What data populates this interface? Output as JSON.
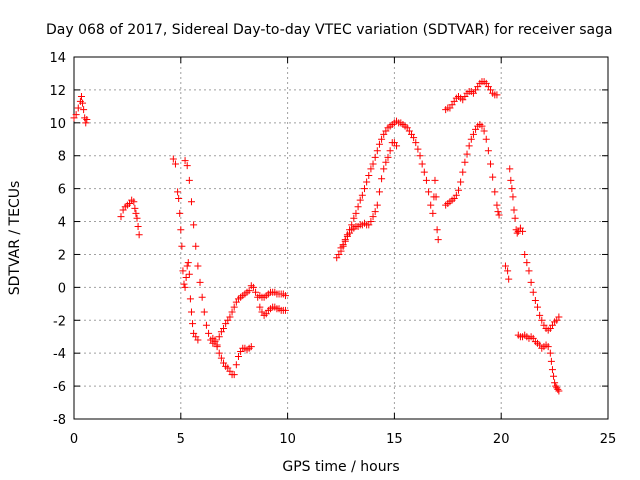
{
  "chart_data": {
    "type": "scatter",
    "title": "Day 068 of 2017, Sidereal Day-to-day VTEC variation (SDTVAR) for receiver saga",
    "xlabel": "GPS time / hours",
    "ylabel": "SDTVAR / TECUs",
    "xlim": [
      0,
      25
    ],
    "ylim": [
      -8,
      14
    ],
    "x_ticks": [
      0,
      5,
      10,
      15,
      20,
      25
    ],
    "y_ticks": [
      -8,
      -6,
      -4,
      -2,
      0,
      2,
      4,
      6,
      8,
      10,
      12,
      14
    ],
    "x_tick_labels": [
      "0",
      "5",
      "10",
      "15",
      "20",
      "25"
    ],
    "y_tick_labels": [
      "-8",
      "-6",
      "-4",
      "-2",
      "0",
      "2",
      "4",
      "6",
      "8",
      "10",
      "12",
      "14"
    ],
    "grid": true,
    "marker": "+",
    "color": "#ff0000",
    "series": [
      {
        "points": [
          [
            0.0,
            10.3
          ],
          [
            0.1,
            10.5
          ],
          [
            0.2,
            10.9
          ],
          [
            0.3,
            11.3
          ],
          [
            0.35,
            11.6
          ],
          [
            0.4,
            11.2
          ],
          [
            0.45,
            10.8
          ],
          [
            0.5,
            10.3
          ],
          [
            0.55,
            10.0
          ],
          [
            0.6,
            10.2
          ]
        ]
      },
      {
        "points": [
          [
            2.2,
            4.3
          ],
          [
            2.3,
            4.7
          ],
          [
            2.4,
            4.9
          ],
          [
            2.5,
            5.0
          ],
          [
            2.6,
            5.1
          ],
          [
            2.7,
            5.3
          ],
          [
            2.8,
            5.2
          ],
          [
            2.85,
            4.8
          ],
          [
            2.9,
            4.5
          ],
          [
            2.95,
            4.2
          ],
          [
            3.0,
            3.7
          ],
          [
            3.05,
            3.2
          ]
        ]
      },
      {
        "points": [
          [
            4.65,
            7.8
          ],
          [
            4.75,
            7.5
          ],
          [
            4.85,
            5.8
          ],
          [
            4.9,
            5.4
          ],
          [
            4.95,
            4.5
          ],
          [
            5.0,
            3.5
          ],
          [
            5.05,
            2.5
          ],
          [
            5.1,
            1.0
          ],
          [
            5.15,
            0.2
          ],
          [
            5.2,
            0.0
          ],
          [
            5.25,
            0.6
          ],
          [
            5.3,
            1.3
          ],
          [
            5.35,
            1.5
          ],
          [
            5.4,
            0.8
          ],
          [
            5.45,
            -0.7
          ],
          [
            5.5,
            -1.5
          ],
          [
            5.55,
            -2.2
          ],
          [
            5.6,
            -2.8
          ],
          [
            5.7,
            -3.0
          ],
          [
            5.8,
            -3.2
          ]
        ]
      },
      {
        "points": [
          [
            5.2,
            7.7
          ],
          [
            5.3,
            7.4
          ],
          [
            5.4,
            6.5
          ],
          [
            5.5,
            5.2
          ],
          [
            5.6,
            3.8
          ],
          [
            5.7,
            2.5
          ],
          [
            5.8,
            1.3
          ],
          [
            5.9,
            0.3
          ],
          [
            6.0,
            -0.6
          ],
          [
            6.1,
            -1.5
          ],
          [
            6.2,
            -2.3
          ],
          [
            6.3,
            -2.8
          ],
          [
            6.4,
            -3.2
          ],
          [
            6.5,
            -3.4
          ],
          [
            6.6,
            -3.3
          ],
          [
            6.7,
            -3.6
          ],
          [
            6.8,
            -4.0
          ],
          [
            6.9,
            -4.3
          ],
          [
            7.0,
            -4.6
          ],
          [
            7.1,
            -4.8
          ],
          [
            7.2,
            -4.9
          ],
          [
            7.3,
            -5.1
          ],
          [
            7.4,
            -5.3
          ],
          [
            7.5,
            -5.3
          ],
          [
            7.6,
            -4.7
          ],
          [
            7.7,
            -4.2
          ],
          [
            7.8,
            -3.9
          ],
          [
            7.9,
            -3.7
          ],
          [
            8.0,
            -3.7
          ],
          [
            8.1,
            -3.8
          ],
          [
            8.2,
            -3.7
          ],
          [
            8.3,
            -3.6
          ]
        ]
      },
      {
        "points": [
          [
            6.5,
            -3.1
          ],
          [
            6.6,
            -3.2
          ],
          [
            6.7,
            -3.5
          ],
          [
            6.8,
            -3.0
          ],
          [
            6.9,
            -2.7
          ],
          [
            7.0,
            -2.5
          ],
          [
            7.1,
            -2.2
          ],
          [
            7.2,
            -2.0
          ],
          [
            7.3,
            -1.8
          ],
          [
            7.4,
            -1.5
          ],
          [
            7.5,
            -1.2
          ],
          [
            7.6,
            -0.9
          ],
          [
            7.7,
            -0.7
          ],
          [
            7.8,
            -0.6
          ],
          [
            7.9,
            -0.5
          ],
          [
            8.0,
            -0.4
          ],
          [
            8.1,
            -0.3
          ],
          [
            8.2,
            -0.2
          ],
          [
            8.3,
            0.1
          ],
          [
            8.4,
            0.0
          ],
          [
            8.5,
            -0.3
          ],
          [
            8.6,
            -0.6
          ],
          [
            8.7,
            -1.2
          ],
          [
            8.8,
            -1.5
          ],
          [
            8.9,
            -1.7
          ],
          [
            9.0,
            -1.6
          ],
          [
            9.1,
            -1.4
          ],
          [
            9.2,
            -1.3
          ],
          [
            9.3,
            -1.2
          ],
          [
            9.4,
            -1.2
          ],
          [
            9.5,
            -1.3
          ],
          [
            9.6,
            -1.3
          ],
          [
            9.7,
            -1.4
          ],
          [
            9.8,
            -1.4
          ],
          [
            9.9,
            -1.4
          ]
        ]
      },
      {
        "points": [
          [
            8.7,
            -0.5
          ],
          [
            8.8,
            -0.6
          ],
          [
            8.9,
            -0.6
          ],
          [
            9.0,
            -0.5
          ],
          [
            9.1,
            -0.4
          ],
          [
            9.2,
            -0.3
          ],
          [
            9.3,
            -0.3
          ],
          [
            9.4,
            -0.3
          ],
          [
            9.5,
            -0.4
          ],
          [
            9.6,
            -0.4
          ],
          [
            9.7,
            -0.4
          ],
          [
            9.8,
            -0.4
          ],
          [
            9.9,
            -0.5
          ]
        ]
      },
      {
        "points": [
          [
            12.3,
            1.8
          ],
          [
            12.4,
            2.0
          ],
          [
            12.5,
            2.2
          ],
          [
            12.6,
            2.5
          ],
          [
            12.7,
            2.8
          ],
          [
            12.8,
            3.2
          ],
          [
            12.9,
            3.5
          ],
          [
            13.0,
            3.8
          ],
          [
            13.1,
            4.2
          ],
          [
            13.2,
            4.5
          ],
          [
            13.3,
            4.9
          ],
          [
            13.4,
            5.3
          ],
          [
            13.5,
            5.6
          ],
          [
            13.6,
            6.0
          ],
          [
            13.7,
            6.4
          ],
          [
            13.8,
            6.8
          ],
          [
            13.9,
            7.2
          ],
          [
            14.0,
            7.5
          ],
          [
            14.1,
            7.9
          ],
          [
            14.2,
            8.3
          ],
          [
            14.3,
            8.7
          ],
          [
            14.4,
            9.0
          ],
          [
            14.5,
            9.3
          ],
          [
            14.6,
            9.5
          ],
          [
            14.7,
            9.7
          ],
          [
            14.8,
            9.8
          ],
          [
            14.9,
            9.9
          ],
          [
            15.0,
            10.0
          ],
          [
            15.1,
            10.1
          ],
          [
            15.2,
            10.0
          ],
          [
            15.3,
            10.0
          ],
          [
            15.4,
            9.9
          ],
          [
            15.5,
            9.8
          ],
          [
            15.6,
            9.7
          ],
          [
            15.7,
            9.5
          ],
          [
            15.8,
            9.3
          ],
          [
            15.9,
            9.1
          ],
          [
            16.0,
            8.8
          ],
          [
            16.1,
            8.4
          ],
          [
            16.2,
            8.0
          ],
          [
            16.3,
            7.5
          ],
          [
            16.4,
            7.0
          ],
          [
            16.5,
            6.5
          ],
          [
            16.6,
            5.8
          ],
          [
            16.7,
            5.0
          ],
          [
            16.8,
            4.5
          ],
          [
            16.85,
            5.5
          ],
          [
            16.9,
            6.5
          ],
          [
            16.95,
            5.5
          ],
          [
            17.0,
            3.5
          ],
          [
            17.05,
            2.9
          ]
        ]
      },
      {
        "points": [
          [
            12.5,
            2.4
          ],
          [
            12.6,
            2.6
          ],
          [
            12.7,
            2.9
          ],
          [
            12.8,
            3.1
          ],
          [
            12.9,
            3.3
          ],
          [
            13.0,
            3.5
          ],
          [
            13.1,
            3.6
          ],
          [
            13.2,
            3.7
          ],
          [
            13.3,
            3.7
          ],
          [
            13.4,
            3.8
          ],
          [
            13.5,
            3.8
          ],
          [
            13.6,
            3.9
          ],
          [
            13.7,
            3.8
          ],
          [
            13.8,
            3.8
          ],
          [
            13.9,
            4.0
          ],
          [
            14.0,
            4.3
          ],
          [
            14.1,
            4.6
          ],
          [
            14.2,
            5.0
          ],
          [
            14.3,
            5.8
          ],
          [
            14.4,
            6.6
          ],
          [
            14.5,
            7.2
          ],
          [
            14.6,
            7.6
          ],
          [
            14.7,
            7.9
          ],
          [
            14.8,
            8.3
          ],
          [
            14.9,
            8.8
          ],
          [
            15.0,
            8.8
          ],
          [
            15.1,
            8.6
          ]
        ]
      },
      {
        "points": [
          [
            17.4,
            10.8
          ],
          [
            17.5,
            10.9
          ],
          [
            17.6,
            10.9
          ],
          [
            17.7,
            11.1
          ],
          [
            17.8,
            11.3
          ],
          [
            17.9,
            11.5
          ],
          [
            18.0,
            11.6
          ],
          [
            18.1,
            11.5
          ],
          [
            18.2,
            11.4
          ],
          [
            18.3,
            11.6
          ],
          [
            18.4,
            11.8
          ],
          [
            18.5,
            11.9
          ],
          [
            18.6,
            11.9
          ],
          [
            18.7,
            11.8
          ],
          [
            18.8,
            12.0
          ],
          [
            18.9,
            12.2
          ],
          [
            19.0,
            12.4
          ],
          [
            19.1,
            12.5
          ],
          [
            19.2,
            12.5
          ],
          [
            19.3,
            12.4
          ],
          [
            19.4,
            12.2
          ],
          [
            19.5,
            12.0
          ],
          [
            19.6,
            11.8
          ],
          [
            19.7,
            11.7
          ],
          [
            19.8,
            11.7
          ]
        ]
      },
      {
        "points": [
          [
            17.4,
            5.0
          ],
          [
            17.5,
            5.1
          ],
          [
            17.6,
            5.2
          ],
          [
            17.7,
            5.3
          ],
          [
            17.8,
            5.4
          ],
          [
            17.9,
            5.6
          ],
          [
            18.0,
            5.9
          ],
          [
            18.1,
            6.4
          ],
          [
            18.2,
            7.0
          ],
          [
            18.3,
            7.6
          ],
          [
            18.4,
            8.1
          ],
          [
            18.5,
            8.6
          ],
          [
            18.6,
            9.0
          ],
          [
            18.7,
            9.3
          ],
          [
            18.8,
            9.6
          ],
          [
            18.9,
            9.8
          ],
          [
            19.0,
            9.9
          ],
          [
            19.1,
            9.8
          ],
          [
            19.2,
            9.5
          ],
          [
            19.3,
            9.0
          ],
          [
            19.4,
            8.3
          ],
          [
            19.5,
            7.5
          ],
          [
            19.6,
            6.7
          ],
          [
            19.7,
            5.8
          ],
          [
            19.8,
            5.0
          ],
          [
            19.85,
            4.6
          ],
          [
            19.9,
            4.4
          ]
        ]
      },
      {
        "points": [
          [
            20.2,
            1.3
          ],
          [
            20.3,
            1.0
          ],
          [
            20.35,
            0.5
          ],
          [
            20.4,
            7.2
          ],
          [
            20.45,
            6.5
          ],
          [
            20.5,
            6.0
          ],
          [
            20.55,
            5.5
          ],
          [
            20.6,
            4.7
          ],
          [
            20.65,
            4.2
          ],
          [
            20.7,
            3.5
          ],
          [
            20.75,
            3.3
          ],
          [
            20.8,
            3.4
          ],
          [
            20.9,
            3.6
          ],
          [
            21.0,
            3.4
          ],
          [
            21.1,
            2.0
          ],
          [
            21.2,
            1.5
          ],
          [
            21.3,
            1.0
          ],
          [
            21.4,
            0.3
          ],
          [
            21.5,
            -0.3
          ],
          [
            21.6,
            -0.8
          ],
          [
            21.7,
            -1.2
          ],
          [
            21.8,
            -1.7
          ],
          [
            21.9,
            -2.0
          ],
          [
            22.0,
            -2.3
          ],
          [
            22.1,
            -2.5
          ],
          [
            22.2,
            -2.6
          ],
          [
            22.3,
            -2.5
          ],
          [
            22.4,
            -2.3
          ],
          [
            22.5,
            -2.1
          ],
          [
            22.6,
            -2.0
          ],
          [
            22.7,
            -1.8
          ]
        ]
      },
      {
        "points": [
          [
            20.8,
            -2.9
          ],
          [
            20.9,
            -3.0
          ],
          [
            21.0,
            -3.0
          ],
          [
            21.1,
            -2.9
          ],
          [
            21.2,
            -3.0
          ],
          [
            21.3,
            -3.1
          ],
          [
            21.4,
            -3.0
          ],
          [
            21.5,
            -3.1
          ],
          [
            21.6,
            -3.3
          ],
          [
            21.7,
            -3.4
          ],
          [
            21.8,
            -3.5
          ],
          [
            21.9,
            -3.7
          ],
          [
            22.0,
            -3.6
          ],
          [
            22.1,
            -3.5
          ],
          [
            22.2,
            -3.6
          ],
          [
            22.3,
            -4.0
          ],
          [
            22.35,
            -4.5
          ],
          [
            22.4,
            -5.0
          ],
          [
            22.45,
            -5.4
          ],
          [
            22.5,
            -5.8
          ],
          [
            22.55,
            -6.0
          ],
          [
            22.6,
            -6.1
          ],
          [
            22.65,
            -6.2
          ],
          [
            22.7,
            -6.3
          ]
        ]
      }
    ]
  }
}
